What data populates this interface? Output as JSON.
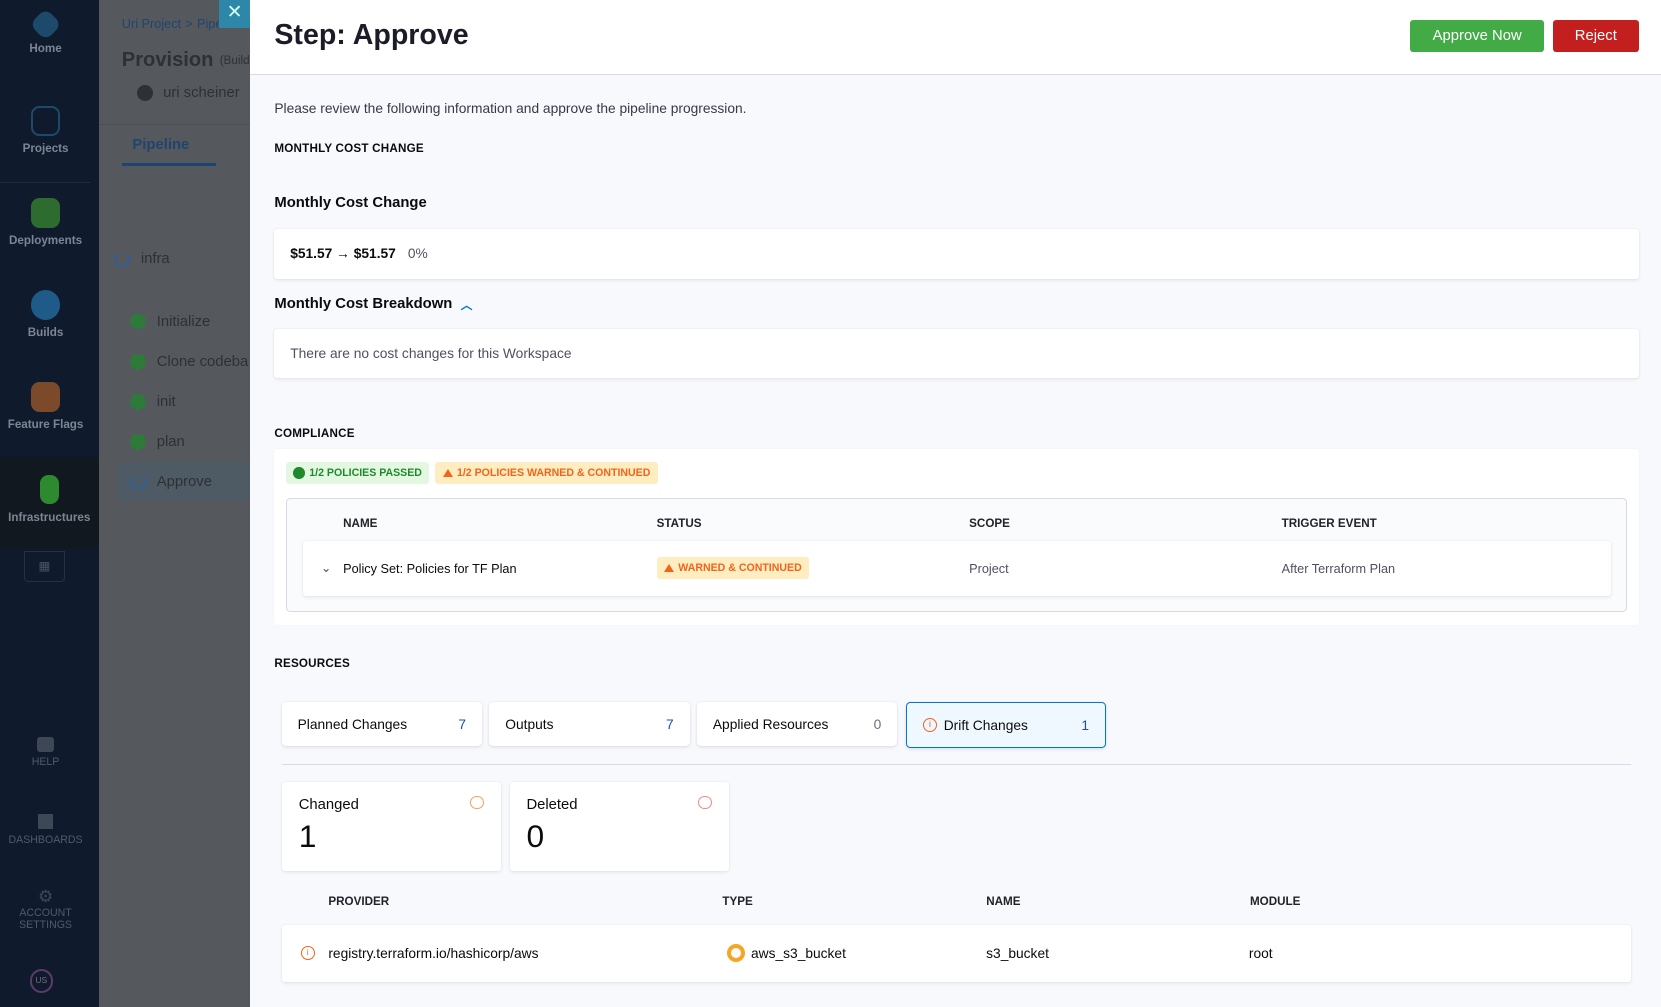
{
  "nav": {
    "items": [
      {
        "label": "Home"
      },
      {
        "label": "Projects"
      },
      {
        "label": "Deployments"
      },
      {
        "label": "Builds"
      },
      {
        "label": "Feature Flags"
      },
      {
        "label": "Infrastructures"
      }
    ],
    "bottom": [
      {
        "label": "HELP"
      },
      {
        "label": "DASHBOARDS"
      },
      {
        "label": "ACCOUNT SETTINGS"
      }
    ],
    "avatar": "US"
  },
  "background": {
    "breadcrumb": [
      "Uri Project",
      ">",
      "Pipeli"
    ],
    "title": "Provision",
    "title_suffix": "(Build",
    "user": "uri scheiner",
    "tab": "Pipeline",
    "stage": "infra",
    "steps": [
      {
        "label": "Initialize"
      },
      {
        "label": "Clone codeba"
      },
      {
        "label": "init"
      },
      {
        "label": "plan"
      },
      {
        "label": "Approve"
      }
    ]
  },
  "panel": {
    "title": "Step: Approve",
    "approve_label": "Approve Now",
    "reject_label": "Reject",
    "intro": "Please review the following information and approve the pipeline progression.",
    "cost": {
      "section": "MONTHLY COST CHANGE",
      "heading": "Monthly Cost Change",
      "value": "$51.57 → $51.57",
      "percent": "0%",
      "breakdown": "Monthly Cost Breakdown",
      "breakdown_empty": "There are no cost changes for this Workspace"
    },
    "compliance": {
      "section": "COMPLIANCE",
      "passed": "1/2 POLICIES PASSED",
      "warned": "1/2 POLICIES WARNED & CONTINUED",
      "columns": [
        "NAME",
        "STATUS",
        "SCOPE",
        "TRIGGER EVENT"
      ],
      "rows": [
        {
          "name": "Policy Set: Policies for TF Plan",
          "status": "WARNED & CONTINUED",
          "scope": "Project",
          "trigger": "After Terraform Plan"
        }
      ]
    },
    "resources": {
      "section": "RESOURCES",
      "tabs": [
        {
          "label": "Planned Changes",
          "count": "7"
        },
        {
          "label": "Outputs",
          "count": "7"
        },
        {
          "label": "Applied Resources",
          "count": "0"
        },
        {
          "label": "Drift Changes",
          "count": "1"
        }
      ],
      "summary": [
        {
          "label": "Changed",
          "count": "1"
        },
        {
          "label": "Deleted",
          "count": "0"
        }
      ],
      "columns": [
        "PROVIDER",
        "TYPE",
        "NAME",
        "MODULE"
      ],
      "rows": [
        {
          "provider": "registry.terraform.io/hashicorp/aws",
          "type": "aws_s3_bucket",
          "name": "s3_bucket",
          "module": "root"
        }
      ]
    }
  },
  "colors": {
    "approve": "#42ab45",
    "reject": "#c41f1f",
    "accent": "#0278d5",
    "warning": "#f0651d"
  }
}
